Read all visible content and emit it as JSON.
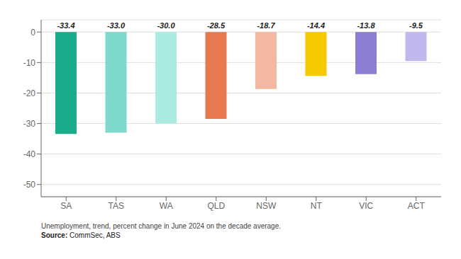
{
  "chart_data": {
    "type": "bar",
    "categories": [
      "SA",
      "TAS",
      "WA",
      "QLD",
      "NSW",
      "NT",
      "VIC",
      "ACT"
    ],
    "values": [
      -33.4,
      -33.0,
      -30.0,
      -28.5,
      -18.7,
      -14.4,
      -13.8,
      -9.5
    ],
    "value_labels": [
      "-33.4",
      "-33.0",
      "-30.0",
      "-28.5",
      "-18.7",
      "-14.4",
      "-13.8",
      "-9.5"
    ],
    "data_labels": true,
    "colors": [
      "#1aab8a",
      "#7dd9cc",
      "#aaeae0",
      "#e8784d",
      "#f4b8a0",
      "#f5c800",
      "#8b7fd4",
      "#c0b8ec"
    ],
    "ylim": [
      -54,
      4
    ],
    "yticks": [
      0,
      -10,
      -20,
      -30,
      -40,
      -50
    ],
    "grid": true,
    "annotations": [
      "Unemployment, trend, percent change in June 2024 on the decade average.",
      "Source: CommSec, ABS"
    ]
  }
}
